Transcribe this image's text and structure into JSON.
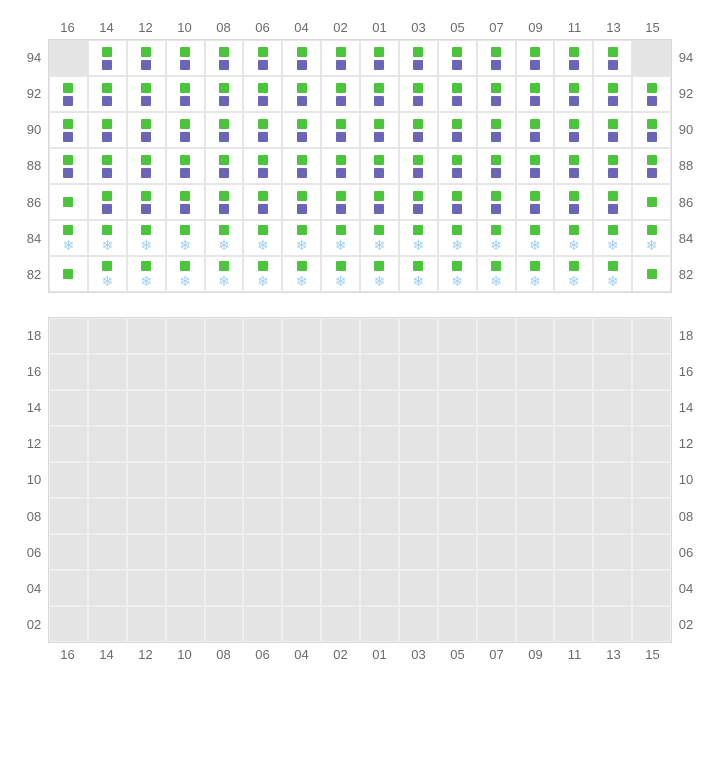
{
  "colors": {
    "green": "#4cc43b",
    "purple": "#6b65b7",
    "snow": "#9ecff5",
    "blank_bg": "#e4e4e4",
    "grid_border": "#e6e6e6",
    "label": "#6b6b6b",
    "inactive_bg": "#e4e4e4"
  },
  "columns": [
    "16",
    "14",
    "12",
    "10",
    "08",
    "06",
    "04",
    "02",
    "01",
    "03",
    "05",
    "07",
    "09",
    "11",
    "13",
    "15"
  ],
  "top_rack": {
    "row_labels": [
      "94",
      "92",
      "90",
      "88",
      "86",
      "84",
      "82"
    ],
    "rows": [
      [
        "blank",
        [
          "g",
          "p"
        ],
        [
          "g",
          "p"
        ],
        [
          "g",
          "p"
        ],
        [
          "g",
          "p"
        ],
        [
          "g",
          "p"
        ],
        [
          "g",
          "p"
        ],
        [
          "g",
          "p"
        ],
        [
          "g",
          "p"
        ],
        [
          "g",
          "p"
        ],
        [
          "g",
          "p"
        ],
        [
          "g",
          "p"
        ],
        [
          "g",
          "p"
        ],
        [
          "g",
          "p"
        ],
        [
          "g",
          "p"
        ],
        "blank"
      ],
      [
        [
          "g",
          "p"
        ],
        [
          "g",
          "p"
        ],
        [
          "g",
          "p"
        ],
        [
          "g",
          "p"
        ],
        [
          "g",
          "p"
        ],
        [
          "g",
          "p"
        ],
        [
          "g",
          "p"
        ],
        [
          "g",
          "p"
        ],
        [
          "g",
          "p"
        ],
        [
          "g",
          "p"
        ],
        [
          "g",
          "p"
        ],
        [
          "g",
          "p"
        ],
        [
          "g",
          "p"
        ],
        [
          "g",
          "p"
        ],
        [
          "g",
          "p"
        ],
        [
          "g",
          "p"
        ]
      ],
      [
        [
          "g",
          "p"
        ],
        [
          "g",
          "p"
        ],
        [
          "g",
          "p"
        ],
        [
          "g",
          "p"
        ],
        [
          "g",
          "p"
        ],
        [
          "g",
          "p"
        ],
        [
          "g",
          "p"
        ],
        [
          "g",
          "p"
        ],
        [
          "g",
          "p"
        ],
        [
          "g",
          "p"
        ],
        [
          "g",
          "p"
        ],
        [
          "g",
          "p"
        ],
        [
          "g",
          "p"
        ],
        [
          "g",
          "p"
        ],
        [
          "g",
          "p"
        ],
        [
          "g",
          "p"
        ]
      ],
      [
        [
          "g",
          "p"
        ],
        [
          "g",
          "p"
        ],
        [
          "g",
          "p"
        ],
        [
          "g",
          "p"
        ],
        [
          "g",
          "p"
        ],
        [
          "g",
          "p"
        ],
        [
          "g",
          "p"
        ],
        [
          "g",
          "p"
        ],
        [
          "g",
          "p"
        ],
        [
          "g",
          "p"
        ],
        [
          "g",
          "p"
        ],
        [
          "g",
          "p"
        ],
        [
          "g",
          "p"
        ],
        [
          "g",
          "p"
        ],
        [
          "g",
          "p"
        ],
        [
          "g",
          "p"
        ]
      ],
      [
        [
          "g"
        ],
        [
          "g",
          "p"
        ],
        [
          "g",
          "p"
        ],
        [
          "g",
          "p"
        ],
        [
          "g",
          "p"
        ],
        [
          "g",
          "p"
        ],
        [
          "g",
          "p"
        ],
        [
          "g",
          "p"
        ],
        [
          "g",
          "p"
        ],
        [
          "g",
          "p"
        ],
        [
          "g",
          "p"
        ],
        [
          "g",
          "p"
        ],
        [
          "g",
          "p"
        ],
        [
          "g",
          "p"
        ],
        [
          "g",
          "p"
        ],
        [
          "g"
        ]
      ],
      [
        [
          "g",
          "s"
        ],
        [
          "g",
          "s"
        ],
        [
          "g",
          "s"
        ],
        [
          "g",
          "s"
        ],
        [
          "g",
          "s"
        ],
        [
          "g",
          "s"
        ],
        [
          "g",
          "s"
        ],
        [
          "g",
          "s"
        ],
        [
          "g",
          "s"
        ],
        [
          "g",
          "s"
        ],
        [
          "g",
          "s"
        ],
        [
          "g",
          "s"
        ],
        [
          "g",
          "s"
        ],
        [
          "g",
          "s"
        ],
        [
          "g",
          "s"
        ],
        [
          "g",
          "s"
        ]
      ],
      [
        [
          "g"
        ],
        [
          "g",
          "s"
        ],
        [
          "g",
          "s"
        ],
        [
          "g",
          "s"
        ],
        [
          "g",
          "s"
        ],
        [
          "g",
          "s"
        ],
        [
          "g",
          "s"
        ],
        [
          "g",
          "s"
        ],
        [
          "g",
          "s"
        ],
        [
          "g",
          "s"
        ],
        [
          "g",
          "s"
        ],
        [
          "g",
          "s"
        ],
        [
          "g",
          "s"
        ],
        [
          "g",
          "s"
        ],
        [
          "g",
          "s"
        ],
        [
          "g"
        ]
      ]
    ]
  },
  "bottom_rack": {
    "row_labels": [
      "18",
      "16",
      "14",
      "12",
      "10",
      "08",
      "06",
      "04",
      "02"
    ],
    "rows": 9,
    "cols": 16
  },
  "marker_legend": {
    "g": "green-square",
    "p": "purple-square",
    "s": "snowflake"
  }
}
